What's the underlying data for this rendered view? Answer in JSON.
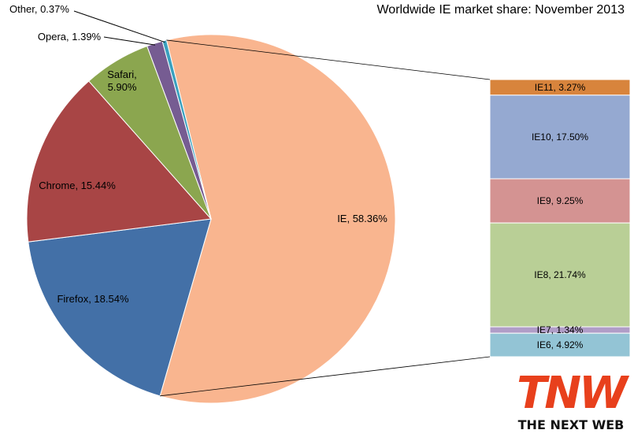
{
  "chart_data": {
    "type": "pie",
    "title": "Worldwide IE market share: November 2013",
    "values": [
      58.36,
      18.54,
      15.44,
      5.9,
      1.39,
      0.37
    ],
    "value_labels": [
      "IE, 58.36%",
      "Firefox, 18.54%",
      "Chrome, 15.44%",
      "Safari, 5.90%",
      "Opera, 1.39%",
      "Other, 0.37%"
    ],
    "colors": [
      "#f9b58f",
      "#4370a7",
      "#a84545",
      "#8ba64f",
      "#765c92",
      "#3aa0be"
    ],
    "breakdown": {
      "type": "bar",
      "stacked": true,
      "values": [
        3.27,
        17.5,
        9.25,
        21.74,
        1.34,
        4.92
      ],
      "value_labels": [
        "IE11, 3.27%",
        "IE10, 17.50%",
        "IE9, 9.25%",
        "IE8, 21.74%",
        "IE7, 1.34%",
        "IE6, 4.92%"
      ],
      "colors": [
        "#d8843c",
        "#95a9d1",
        "#d49392",
        "#b9cf96",
        "#b09dc7",
        "#93c4d5"
      ]
    }
  },
  "logo": {
    "mark": "TNW",
    "tagline": "THE NEXT WEB"
  }
}
